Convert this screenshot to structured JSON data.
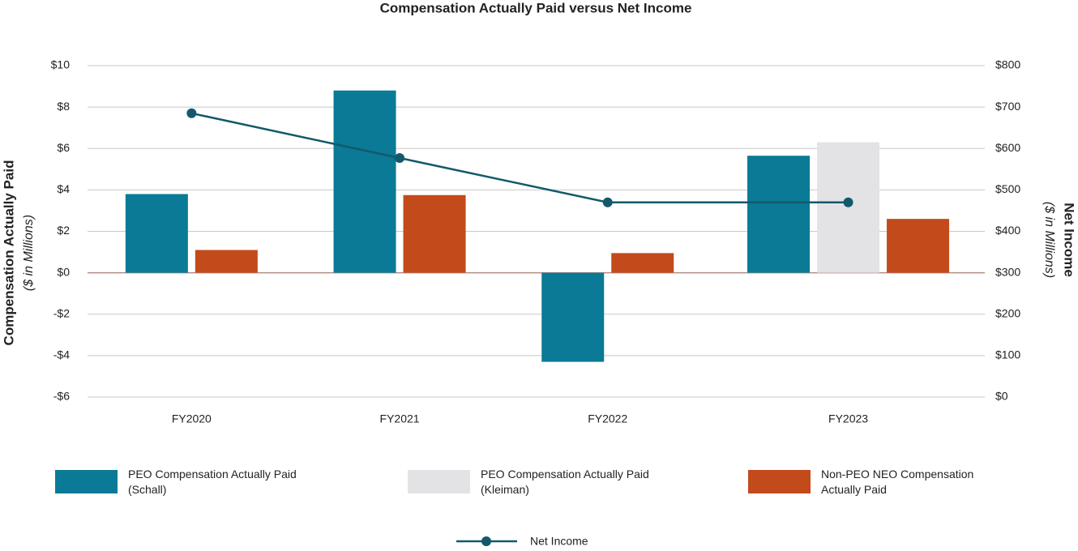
{
  "chart_data": {
    "type": "bar",
    "title": "Compensation Actually Paid versus Net Income",
    "y_label": "Compensation Actually Paid",
    "y_sublabel": "($ in Millions)",
    "y2_label": "Net Income",
    "y2_sublabel": "($ in Millions)",
    "categories": [
      "FY2020",
      "FY2021",
      "FY2022",
      "FY2023"
    ],
    "series": [
      {
        "name": "PEO Compensation Actually Paid (Schall)",
        "type": "bar",
        "color": "#0a7a96",
        "values": [
          3.8,
          8.8,
          -4.3,
          5.65
        ]
      },
      {
        "name": "PEO Compensation Actually Paid (Kleiman)",
        "type": "bar",
        "color": "#e3e3e5",
        "values": [
          null,
          null,
          null,
          6.3
        ]
      },
      {
        "name": "Non-PEO NEO Compensation Actually Paid",
        "type": "bar",
        "color": "#c34a1b",
        "values": [
          1.1,
          3.75,
          0.95,
          2.6
        ]
      },
      {
        "name": "Net Income",
        "type": "line",
        "axis": "y2",
        "color": "#13596b",
        "values": [
          685,
          577,
          470,
          470
        ]
      }
    ],
    "ylim": [
      -6,
      10
    ],
    "yticks": [
      {
        "value": -6,
        "label": "-$6"
      },
      {
        "value": -4,
        "label": "-$4"
      },
      {
        "value": -2,
        "label": "-$2"
      },
      {
        "value": 0,
        "label": "$0"
      },
      {
        "value": 2,
        "label": "$2"
      },
      {
        "value": 4,
        "label": "$4"
      },
      {
        "value": 6,
        "label": "$6"
      },
      {
        "value": 8,
        "label": "$8"
      },
      {
        "value": 10,
        "label": "$10"
      }
    ],
    "y2lim": [
      0,
      800
    ],
    "y2ticks": [
      {
        "value": 0,
        "label": "$0"
      },
      {
        "value": 100,
        "label": "$100"
      },
      {
        "value": 200,
        "label": "$200"
      },
      {
        "value": 300,
        "label": "$300"
      },
      {
        "value": 400,
        "label": "$400"
      },
      {
        "value": 500,
        "label": "$500"
      },
      {
        "value": 600,
        "label": "$600"
      },
      {
        "value": 700,
        "label": "$700"
      },
      {
        "value": 800,
        "label": "$800"
      }
    ],
    "grid": true
  }
}
